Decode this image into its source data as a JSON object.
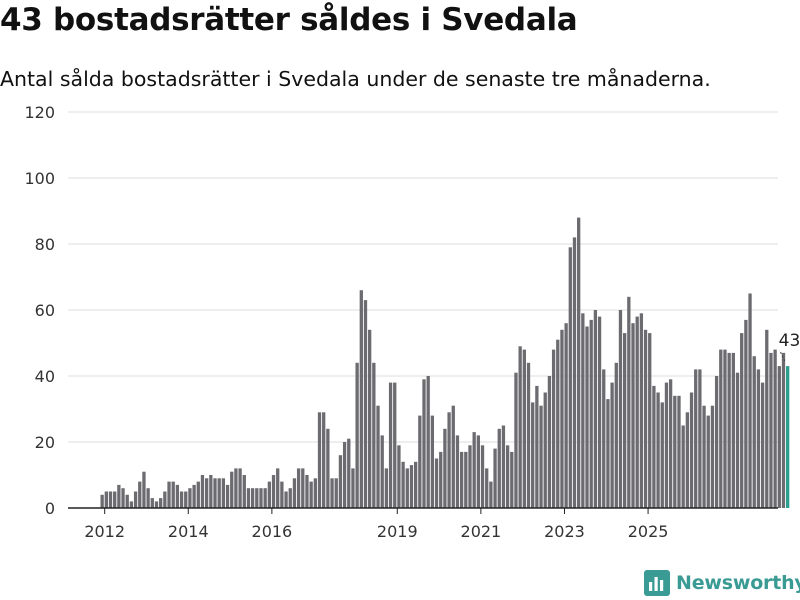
{
  "header": {
    "title": "43 bostadsrätter såldes i Svedala",
    "subtitle": "Antal sålda bostadsrätter i Svedala under de senaste tre månaderna."
  },
  "brand": {
    "name": "Newsworthy",
    "color": "#3a9a94",
    "icon": "bar-chart-logo-icon"
  },
  "colors": {
    "bar": "#6b6b70",
    "highlight": "#2a9d8f",
    "grid": "#dcdcdc",
    "axis": "#222222",
    "text": "#333333"
  },
  "chart_data": {
    "type": "bar",
    "title": "",
    "xlabel": "",
    "ylabel": "",
    "ylim": [
      0,
      120
    ],
    "yticks": [
      0,
      20,
      40,
      60,
      80,
      100,
      120
    ],
    "grid": true,
    "x_tick_labels": [
      "2012",
      "2014",
      "2016",
      "2019",
      "2021",
      "2023",
      "2025"
    ],
    "tick_positions": [
      {
        "label": "2012",
        "after_bars": 1
      },
      {
        "label": "2014",
        "after_bars": 21
      },
      {
        "label": "2016",
        "after_bars": 41
      },
      {
        "label": "2019",
        "after_bars": 71
      },
      {
        "label": "2021",
        "after_bars": 91
      },
      {
        "label": "2023",
        "after_bars": 111
      },
      {
        "label": "2025",
        "after_bars": 131
      }
    ],
    "values": [
      4,
      5,
      5,
      5,
      7,
      6,
      4,
      2,
      5,
      8,
      11,
      6,
      3,
      2,
      3,
      5,
      8,
      8,
      7,
      5,
      5,
      6,
      7,
      8,
      10,
      9,
      10,
      9,
      9,
      9,
      7,
      11,
      12,
      12,
      10,
      6,
      6,
      6,
      6,
      6,
      8,
      10,
      12,
      8,
      5,
      6,
      9,
      12,
      12,
      10,
      8,
      9,
      29,
      29,
      24,
      9,
      9,
      16,
      20,
      21,
      12,
      44,
      66,
      63,
      54,
      44,
      31,
      22,
      12,
      38,
      38,
      19,
      14,
      12,
      13,
      14,
      28,
      39,
      40,
      28,
      15,
      17,
      24,
      29,
      31,
      22,
      17,
      17,
      19,
      23,
      22,
      19,
      12,
      8,
      18,
      24,
      25,
      19,
      17,
      41,
      49,
      48,
      44,
      32,
      37,
      31,
      35,
      40,
      48,
      51,
      54,
      56,
      79,
      82,
      88,
      59,
      55,
      57,
      60,
      58,
      42,
      33,
      38,
      44,
      60,
      53,
      64,
      56,
      58,
      59,
      54,
      53,
      37,
      35,
      32,
      38,
      39,
      34,
      34,
      25,
      29,
      35,
      42,
      42,
      31,
      28,
      31,
      40,
      48,
      48,
      47,
      47,
      41,
      53,
      57,
      65,
      46,
      42,
      38,
      54,
      47,
      48,
      43,
      47,
      43
    ],
    "highlight_last": true,
    "annotation": "43"
  }
}
